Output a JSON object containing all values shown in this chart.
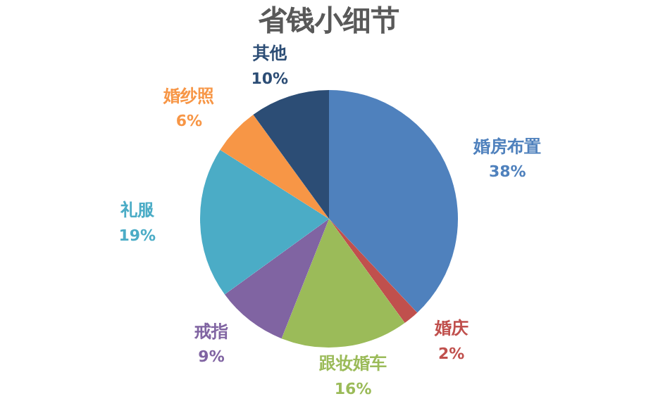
{
  "chart_data": {
    "type": "pie",
    "title": "省钱小细节",
    "categories": [
      "婚房布置",
      "婚庆",
      "跟妆婚车",
      "戒指",
      "礼服",
      "婚纱照",
      "其他"
    ],
    "values": [
      38,
      2,
      16,
      9,
      19,
      6,
      10
    ],
    "value_labels": [
      "38%",
      "2%",
      "16%",
      "9%",
      "19%",
      "6%",
      "10%"
    ],
    "colors": [
      "#4f81bd",
      "#c0504d",
      "#9bbb59",
      "#8064a2",
      "#4bacc6",
      "#f79646",
      "#2c4d75"
    ],
    "legend": false
  }
}
